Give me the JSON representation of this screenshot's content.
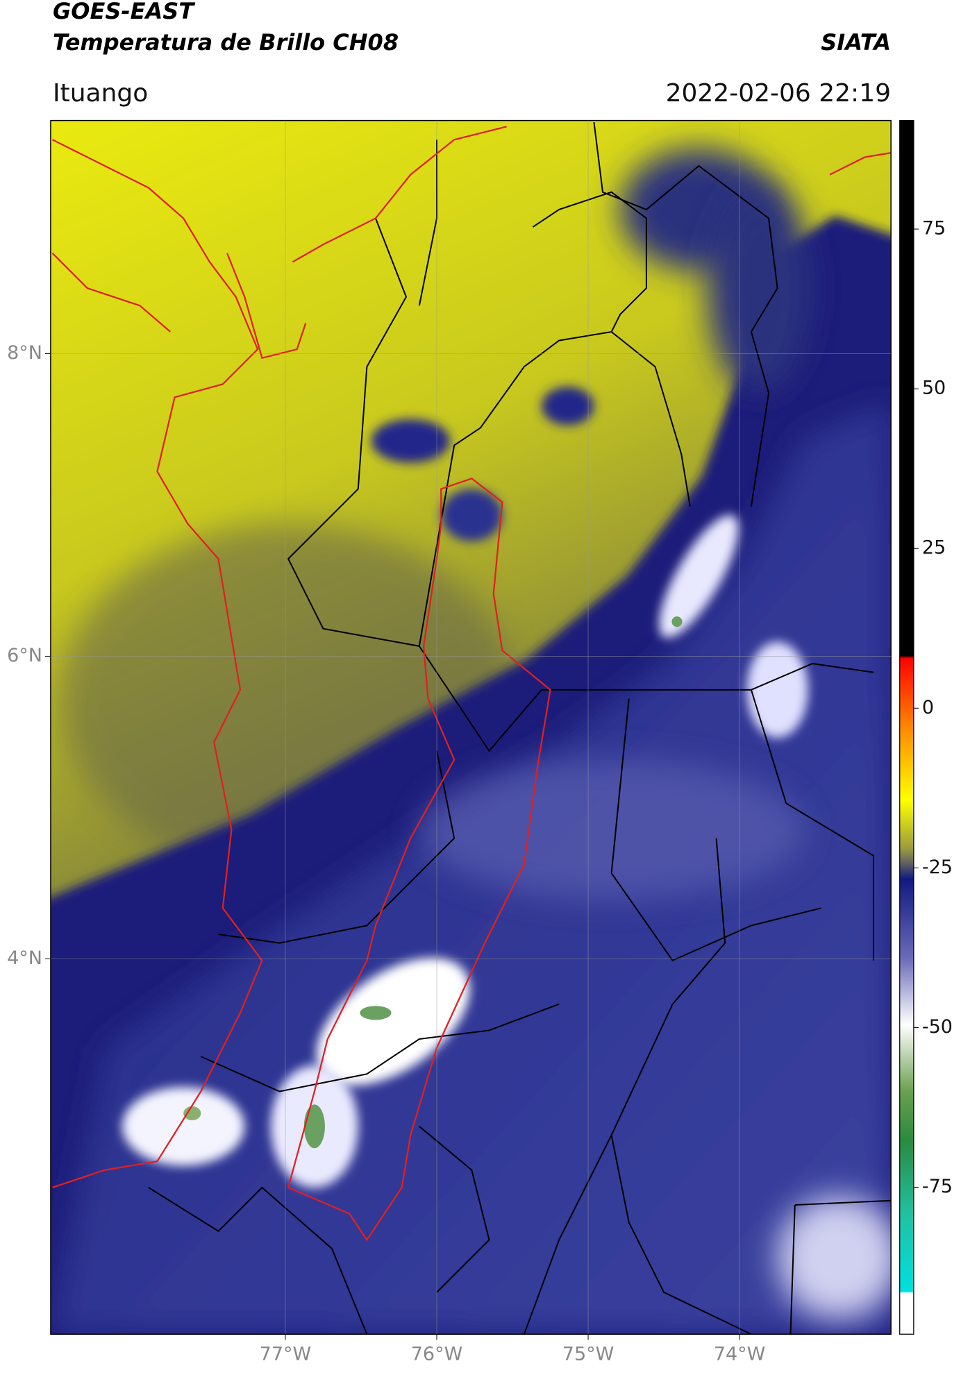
{
  "header": {
    "title": "GOES-EAST",
    "subtitle": "Temperatura de Brillo CH08",
    "source": "SIATA",
    "location": "Ituango",
    "datetime": "2022-02-06 22:19"
  },
  "map": {
    "xlim": [
      -78.55,
      -73
    ],
    "ylim": [
      1.52,
      9.54
    ],
    "xticks": [
      {
        "value": -77,
        "label": "77°W"
      },
      {
        "value": -76,
        "label": "76°W"
      },
      {
        "value": -75,
        "label": "75°W"
      },
      {
        "value": -74,
        "label": "74°W"
      }
    ],
    "yticks": [
      {
        "value": 8,
        "label": "8°N"
      },
      {
        "value": 6,
        "label": "6°N"
      },
      {
        "value": 4,
        "label": "4°N"
      }
    ]
  },
  "colorbar": {
    "lim": [
      -98,
      92
    ],
    "ticks": [
      75,
      50,
      25,
      0,
      -25,
      -50,
      -75
    ]
  }
}
